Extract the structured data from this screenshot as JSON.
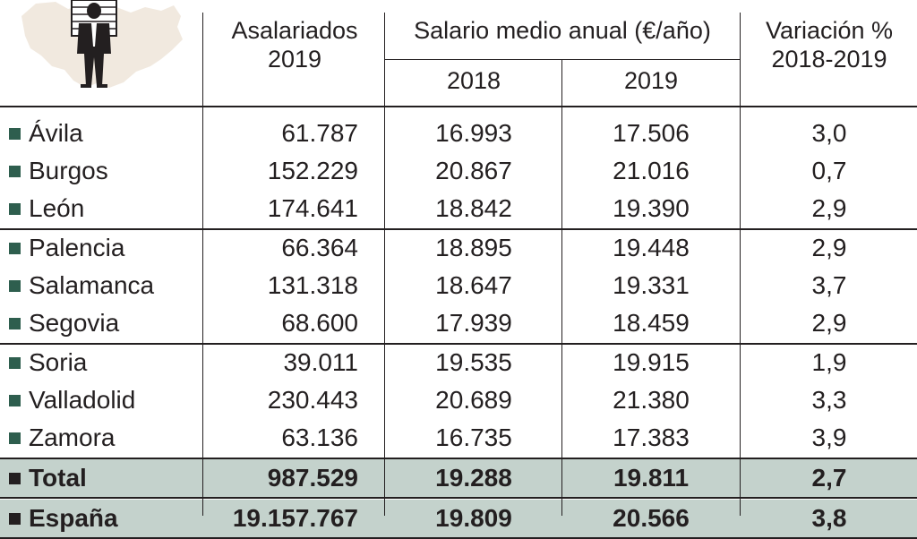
{
  "colors": {
    "bullet_region": "#2e5e4e",
    "bullet_total": "#231f20",
    "total_band": "#c4d2cc",
    "map_fill": "#f1e9df",
    "text": "#231f20"
  },
  "illustration": {
    "icon": "businessman-with-coin-stack-icon",
    "background": "castilla-y-leon-map-silhouette"
  },
  "chart_data": {
    "type": "table",
    "columns": {
      "asalariados": "Asalariados\n2019",
      "salario_group": "Salario medio anual (€/año)",
      "salario_2018": "2018",
      "salario_2019": "2019",
      "variacion": "Variación %\n2018-2019"
    },
    "rows": [
      {
        "name": "Ávila",
        "asalariados": "61.787",
        "s2018": "16.993",
        "s2019": "17.506",
        "var": "3,0"
      },
      {
        "name": "Burgos",
        "asalariados": "152.229",
        "s2018": "20.867",
        "s2019": "21.016",
        "var": "0,7"
      },
      {
        "name": "León",
        "asalariados": "174.641",
        "s2018": "18.842",
        "s2019": "19.390",
        "var": "2,9"
      },
      {
        "name": "Palencia",
        "asalariados": "66.364",
        "s2018": "18.895",
        "s2019": "19.448",
        "var": "2,9"
      },
      {
        "name": "Salamanca",
        "asalariados": "131.318",
        "s2018": "18.647",
        "s2019": "19.331",
        "var": "3,7"
      },
      {
        "name": "Segovia",
        "asalariados": "68.600",
        "s2018": "17.939",
        "s2019": "18.459",
        "var": "2,9"
      },
      {
        "name": "Soria",
        "asalariados": "39.011",
        "s2018": "19.535",
        "s2019": "19.915",
        "var": "1,9"
      },
      {
        "name": "Valladolid",
        "asalariados": "230.443",
        "s2018": "20.689",
        "s2019": "21.380",
        "var": "3,3"
      },
      {
        "name": "Zamora",
        "asalariados": "63.136",
        "s2018": "16.735",
        "s2019": "17.383",
        "var": "3,9"
      }
    ],
    "totals": [
      {
        "name": "Total",
        "asalariados": "987.529",
        "s2018": "19.288",
        "s2019": "19.811",
        "var": "2,7"
      },
      {
        "name": "España",
        "asalariados": "19.157.767",
        "s2018": "19.809",
        "s2019": "20.566",
        "var": "3,8"
      }
    ],
    "row_groups": [
      3,
      3,
      3
    ]
  }
}
